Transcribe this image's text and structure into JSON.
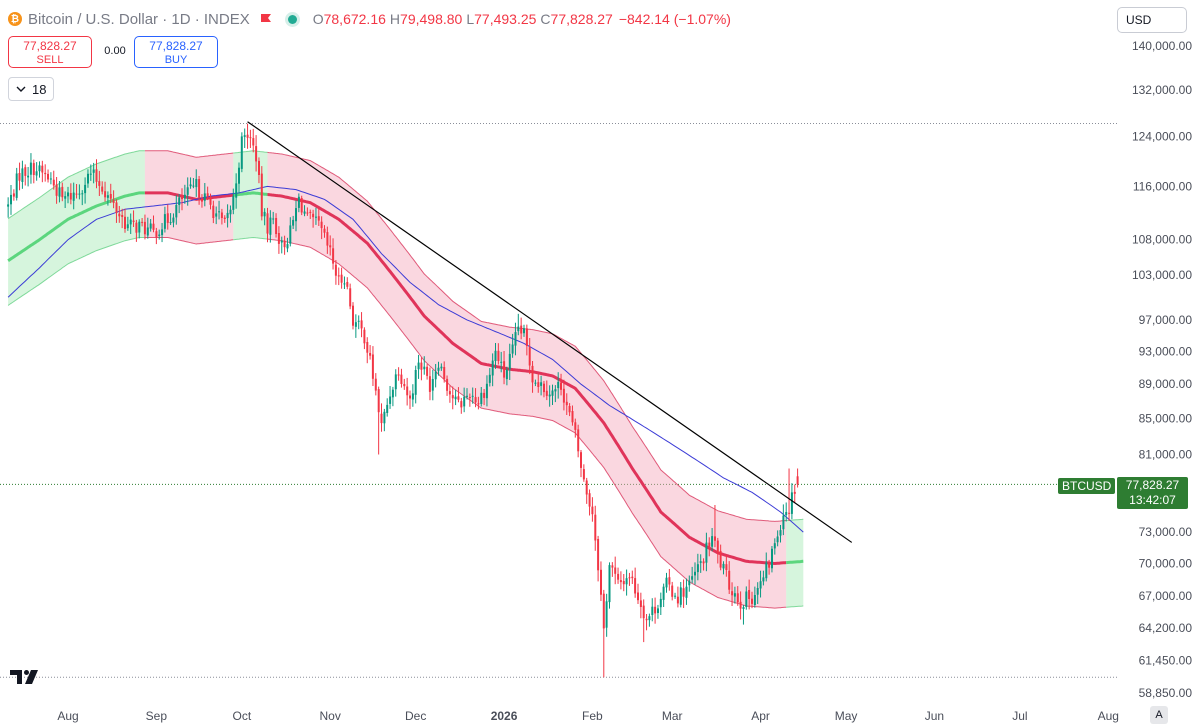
{
  "header": {
    "coin_glyph": "₿",
    "title": "Bitcoin / U.S. Dollar · 1D · INDEX",
    "ohlc": [
      {
        "label": "O",
        "value": "78,672.16"
      },
      {
        "label": "H",
        "value": "79,498.80"
      },
      {
        "label": "L",
        "value": "77,493.25"
      },
      {
        "label": "C",
        "value": "77,828.27"
      }
    ],
    "change": "−842.14 (−1.07%)",
    "flag_color": "#f23645",
    "status_color": "#22ab94"
  },
  "trade": {
    "sell_price": "77,828.27",
    "sell_label": "SELL",
    "spread": "0.00",
    "buy_price": "77,828.27",
    "buy_label": "BUY"
  },
  "interval": {
    "value": "18"
  },
  "currency": {
    "value": "USD"
  },
  "price_tag": {
    "symbol": "BTCUSD",
    "price": "77,828.27",
    "countdown": "13:42:07"
  },
  "auto_button": "A",
  "colors": {
    "up": "#089981",
    "down": "#f23645",
    "band_bull": "#a5e8b4",
    "band_bear": "#f4a7bb",
    "midline_bull": "#5cd67e",
    "midline_bear": "#e0345a",
    "ma_line": "#3b3bd6",
    "trendline": "#000000",
    "price_tag": "#2e7d32"
  },
  "chart_data": {
    "type": "candlestick",
    "y_ticks": [
      {
        "label": "140,000.00",
        "value": 140000
      },
      {
        "label": "132,000.00",
        "value": 132000
      },
      {
        "label": "124,000.00",
        "value": 124000
      },
      {
        "label": "116,000.00",
        "value": 116000
      },
      {
        "label": "108,000.00",
        "value": 108000
      },
      {
        "label": "103,000.00",
        "value": 103000
      },
      {
        "label": "97,000.00",
        "value": 97000
      },
      {
        "label": "93,000.00",
        "value": 93000
      },
      {
        "label": "89,000.00",
        "value": 89000
      },
      {
        "label": "85,000.00",
        "value": 85000
      },
      {
        "label": "81,000.00",
        "value": 81000
      },
      {
        "label": "73,000.00",
        "value": 73000
      },
      {
        "label": "70,000.00",
        "value": 70000
      },
      {
        "label": "67,000.00",
        "value": 67000
      },
      {
        "label": "64,200.00",
        "value": 64200
      },
      {
        "label": "61,450.00",
        "value": 61450
      },
      {
        "label": "58,850.00",
        "value": 58850
      }
    ],
    "x_ticks": [
      {
        "label": "Aug",
        "day": 0,
        "bold": false
      },
      {
        "label": "Sep",
        "day": 31,
        "bold": false
      },
      {
        "label": "Oct",
        "day": 61,
        "bold": false
      },
      {
        "label": "Nov",
        "day": 92,
        "bold": false
      },
      {
        "label": "Dec",
        "day": 122,
        "bold": false
      },
      {
        "label": "2026",
        "day": 153,
        "bold": true
      },
      {
        "label": "Feb",
        "day": 184,
        "bold": false
      },
      {
        "label": "Mar",
        "day": 212,
        "bold": false
      },
      {
        "label": "Apr",
        "day": 243,
        "bold": false
      },
      {
        "label": "May",
        "day": 273,
        "bold": false
      },
      {
        "label": "Jun",
        "day": 304,
        "bold": false
      },
      {
        "label": "Jul",
        "day": 334,
        "bold": false
      },
      {
        "label": "Aug",
        "day": 365,
        "bold": false
      }
    ],
    "close_keypoints": [
      [
        -21,
        113000
      ],
      [
        -17,
        118000
      ],
      [
        -12,
        119000
      ],
      [
        -6,
        117000
      ],
      [
        -2,
        114000
      ],
      [
        3,
        115000
      ],
      [
        8,
        118000
      ],
      [
        12,
        116000
      ],
      [
        16,
        113000
      ],
      [
        21,
        110000
      ],
      [
        25,
        110000
      ],
      [
        30,
        109000
      ],
      [
        35,
        111000
      ],
      [
        40,
        114000
      ],
      [
        45,
        116000
      ],
      [
        50,
        113000
      ],
      [
        55,
        110000
      ],
      [
        58,
        114000
      ],
      [
        61,
        123000
      ],
      [
        63,
        124500
      ],
      [
        66,
        121000
      ],
      [
        68,
        112000
      ],
      [
        70,
        110000
      ],
      [
        72,
        111000
      ],
      [
        75,
        107000
      ],
      [
        78,
        109000
      ],
      [
        81,
        114000
      ],
      [
        84,
        111000
      ],
      [
        88,
        110000
      ],
      [
        92,
        106000
      ],
      [
        95,
        102000
      ],
      [
        97,
        103000
      ],
      [
        100,
        97000
      ],
      [
        104,
        95000
      ],
      [
        107,
        90000
      ],
      [
        110,
        84000
      ],
      [
        113,
        88000
      ],
      [
        116,
        91000
      ],
      [
        120,
        87000
      ],
      [
        123,
        92000
      ],
      [
        127,
        89000
      ],
      [
        130,
        92000
      ],
      [
        134,
        88000
      ],
      [
        137,
        86500
      ],
      [
        141,
        88000
      ],
      [
        144,
        87000
      ],
      [
        147,
        89000
      ],
      [
        150,
        93000
      ],
      [
        153,
        90000
      ],
      [
        156,
        93000
      ],
      [
        158,
        96000
      ],
      [
        160,
        95000
      ],
      [
        163,
        90000
      ],
      [
        166,
        89000
      ],
      [
        170,
        88000
      ],
      [
        173,
        89000
      ],
      [
        175,
        86500
      ],
      [
        178,
        83000
      ],
      [
        181,
        78000
      ],
      [
        184,
        75000
      ],
      [
        186,
        70000
      ],
      [
        188,
        64000
      ],
      [
        190,
        70000
      ],
      [
        193,
        68000
      ],
      [
        197,
        69000
      ],
      [
        200,
        67000
      ],
      [
        203,
        65000
      ],
      [
        206,
        66000
      ],
      [
        210,
        68000
      ],
      [
        214,
        67000
      ],
      [
        218,
        68000
      ],
      [
        222,
        70000
      ],
      [
        226,
        72500
      ],
      [
        229,
        70000
      ],
      [
        232,
        68000
      ],
      [
        236,
        66500
      ],
      [
        240,
        67000
      ],
      [
        243,
        68000
      ],
      [
        246,
        70000
      ],
      [
        249,
        73000
      ],
      [
        251,
        75000
      ],
      [
        253,
        75500
      ],
      [
        256,
        78672
      ]
    ],
    "low_extremes": [
      [
        109,
        81000
      ],
      [
        188,
        60100
      ],
      [
        202,
        63000
      ],
      [
        237,
        64500
      ]
    ],
    "high_extremes": [
      [
        63,
        126000
      ],
      [
        158,
        97800
      ],
      [
        227,
        75700
      ],
      [
        253,
        79498.8
      ]
    ],
    "last_candle": {
      "open": 78672.16,
      "high": 79498.8,
      "low": 77493.25,
      "close": 77828.27
    },
    "current_price": 77828.27,
    "band_midline": [
      [
        -21,
        105000
      ],
      [
        -10,
        108000
      ],
      [
        0,
        111000
      ],
      [
        10,
        113000
      ],
      [
        20,
        114500
      ],
      [
        25,
        115000
      ],
      [
        35,
        115000
      ],
      [
        45,
        114000
      ],
      [
        55,
        114500
      ],
      [
        65,
        115000
      ],
      [
        75,
        114500
      ],
      [
        85,
        113500
      ],
      [
        95,
        111000
      ],
      [
        105,
        107500
      ],
      [
        115,
        102500
      ],
      [
        125,
        97500
      ],
      [
        135,
        94000
      ],
      [
        145,
        91500
      ],
      [
        155,
        90800
      ],
      [
        163,
        90500
      ],
      [
        170,
        90000
      ],
      [
        178,
        88500
      ],
      [
        188,
        84500
      ],
      [
        198,
        79500
      ],
      [
        208,
        75000
      ],
      [
        218,
        72500
      ],
      [
        228,
        71000
      ],
      [
        238,
        70200
      ],
      [
        248,
        70000
      ],
      [
        258,
        70200
      ]
    ],
    "band_halfwidth_pct": 5.8,
    "band_regimes": [
      {
        "from": -21,
        "to": 27,
        "trend": "bull"
      },
      {
        "from": 27,
        "to": 58,
        "trend": "bear"
      },
      {
        "from": 58,
        "to": 70,
        "trend": "bull"
      },
      {
        "from": 70,
        "to": 252,
        "trend": "bear"
      },
      {
        "from": 252,
        "to": 258,
        "trend": "bull"
      }
    ],
    "ma_line": [
      [
        -21,
        100000
      ],
      [
        -10,
        104000
      ],
      [
        0,
        108000
      ],
      [
        10,
        111000
      ],
      [
        20,
        112500
      ],
      [
        30,
        113000
      ],
      [
        40,
        113500
      ],
      [
        50,
        114500
      ],
      [
        60,
        115000
      ],
      [
        70,
        116000
      ],
      [
        80,
        115500
      ],
      [
        90,
        114000
      ],
      [
        100,
        111000
      ],
      [
        110,
        106000
      ],
      [
        120,
        102000
      ],
      [
        130,
        99000
      ],
      [
        140,
        97000
      ],
      [
        150,
        95500
      ],
      [
        160,
        94000
      ],
      [
        170,
        92000
      ],
      [
        180,
        89000
      ],
      [
        190,
        86500
      ],
      [
        200,
        84500
      ],
      [
        210,
        82500
      ],
      [
        220,
        80500
      ],
      [
        230,
        78500
      ],
      [
        240,
        77000
      ],
      [
        250,
        75000
      ],
      [
        258,
        73000
      ]
    ],
    "trendline": {
      "start": [
        63,
        126500
      ],
      "end": [
        275,
        72000
      ]
    },
    "ath_level": 126200,
    "low_level": 60100
  }
}
